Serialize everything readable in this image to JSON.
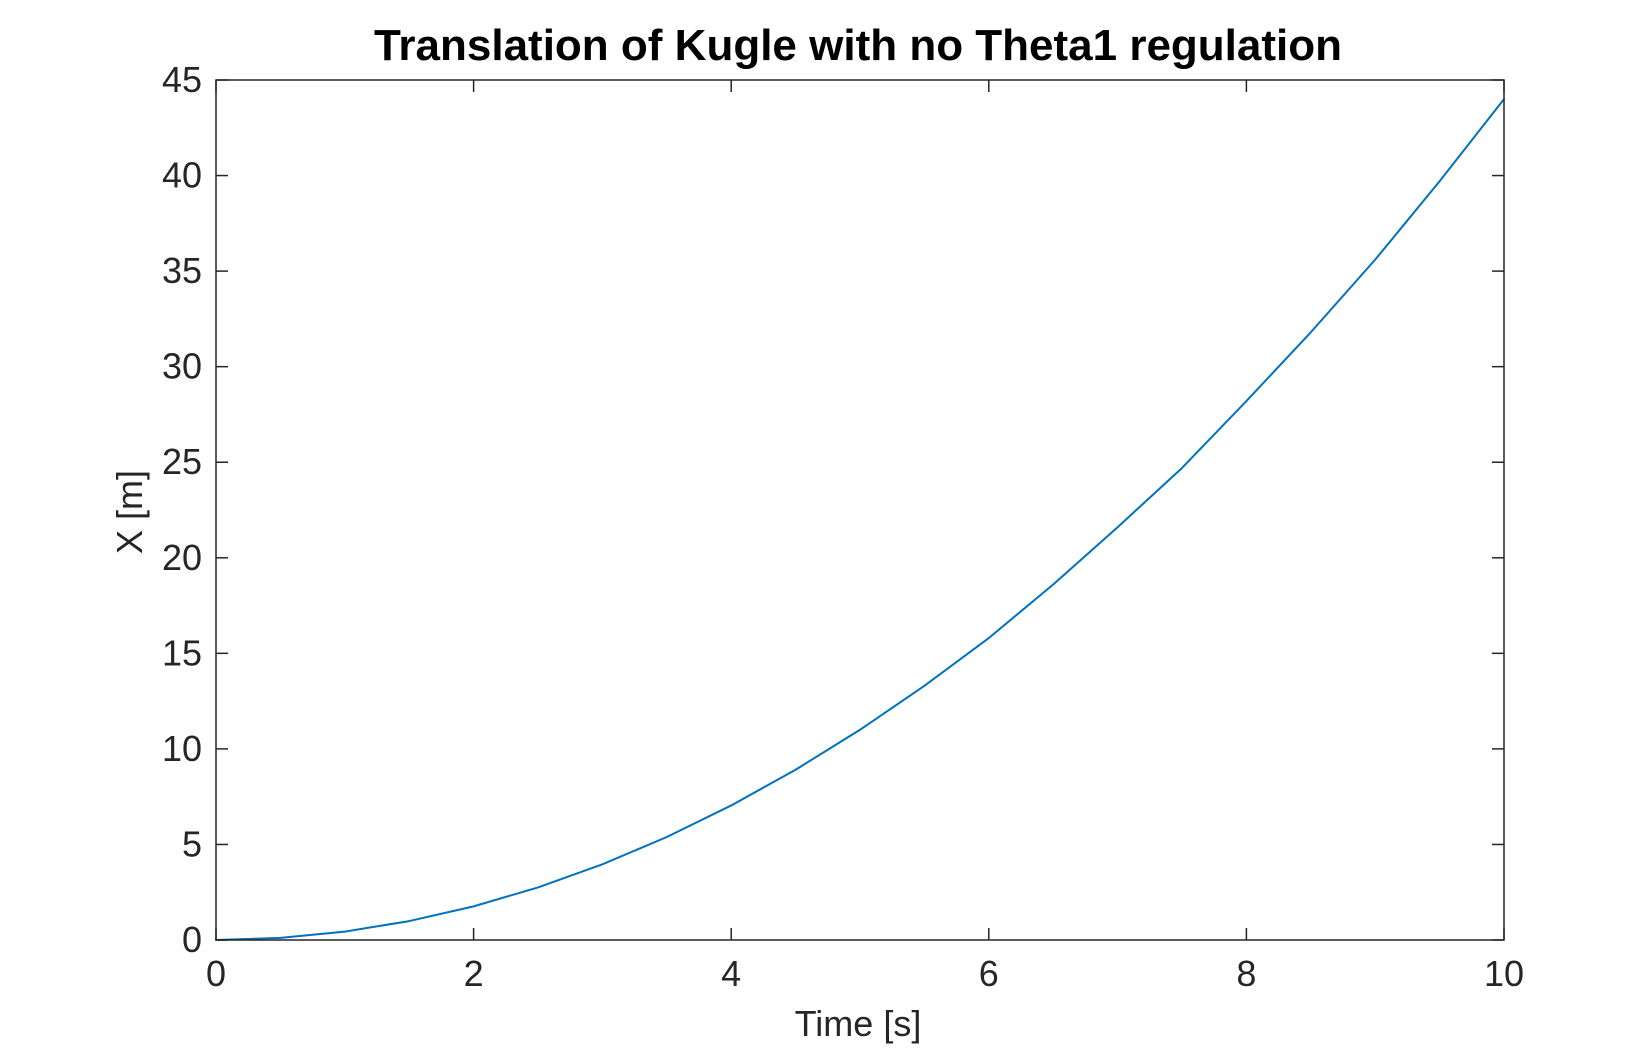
{
  "chart_data": {
    "type": "line",
    "title": "Translation of Kugle with no Theta1 regulation",
    "xlabel": "Time [s]",
    "ylabel": "X [m]",
    "xlim": [
      0,
      10
    ],
    "ylim": [
      0,
      45
    ],
    "xticks": [
      0,
      2,
      4,
      6,
      8,
      10
    ],
    "yticks": [
      0,
      5,
      10,
      15,
      20,
      25,
      30,
      35,
      40,
      45
    ],
    "grid": false,
    "box": true,
    "series": [
      {
        "color": "#0072BD",
        "x": [
          0,
          0.5,
          1,
          1.5,
          2,
          2.5,
          3,
          3.5,
          4,
          4.5,
          5,
          5.5,
          6,
          6.5,
          7,
          7.5,
          8,
          8.5,
          9,
          9.5,
          10
        ],
        "y": [
          0,
          0.11,
          0.44,
          0.99,
          1.76,
          2.75,
          3.96,
          5.39,
          7.04,
          8.91,
          11.0,
          13.3,
          15.8,
          18.6,
          21.6,
          24.7,
          28.2,
          31.8,
          35.6,
          39.7,
          44.0
        ]
      }
    ]
  }
}
